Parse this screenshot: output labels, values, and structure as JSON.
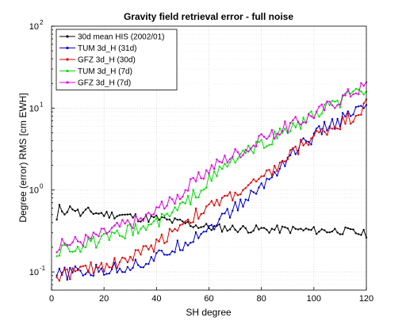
{
  "chart_data": {
    "type": "line",
    "title": "Gravity field retrieval error - full noise",
    "xlabel": "SH degree",
    "ylabel": "Degree (error) RMS [cm EWH]",
    "xlim": [
      0,
      120
    ],
    "ylim": [
      0.06,
      100
    ],
    "yscale": "log",
    "grid": true,
    "legend_position": "top-left",
    "x_ticks": [
      0,
      20,
      40,
      60,
      80,
      100,
      120
    ],
    "y_ticks": [
      {
        "value": 0.1,
        "base": "10",
        "exp": "-1"
      },
      {
        "value": 1,
        "base": "10",
        "exp": "0"
      },
      {
        "value": 10,
        "base": "10",
        "exp": "1"
      },
      {
        "value": 100,
        "base": "10",
        "exp": "2"
      }
    ],
    "series": [
      {
        "name": "30d mean HIS (2002/01)",
        "color": "#000000",
        "marker": "dot",
        "start": 2,
        "anchors": [
          [
            2,
            0.42
          ],
          [
            3,
            0.6
          ],
          [
            5,
            0.55
          ],
          [
            8,
            0.62
          ],
          [
            11,
            0.5
          ],
          [
            14,
            0.55
          ],
          [
            18,
            0.52
          ],
          [
            22,
            0.5
          ],
          [
            26,
            0.5
          ],
          [
            30,
            0.48
          ],
          [
            35,
            0.45
          ],
          [
            40,
            0.45
          ],
          [
            45,
            0.42
          ],
          [
            50,
            0.4
          ],
          [
            55,
            0.37
          ],
          [
            60,
            0.35
          ],
          [
            70,
            0.34
          ],
          [
            80,
            0.33
          ],
          [
            90,
            0.33
          ],
          [
            100,
            0.32
          ],
          [
            110,
            0.32
          ],
          [
            120,
            0.29
          ]
        ]
      },
      {
        "name": "TUM 3d_H (31d)",
        "color": "#0000d0",
        "marker": "dot",
        "start": 2,
        "anchors": [
          [
            2,
            0.09
          ],
          [
            5,
            0.095
          ],
          [
            10,
            0.1
          ],
          [
            15,
            0.1
          ],
          [
            20,
            0.105
          ],
          [
            25,
            0.11
          ],
          [
            30,
            0.12
          ],
          [
            35,
            0.13
          ],
          [
            40,
            0.15
          ],
          [
            45,
            0.18
          ],
          [
            50,
            0.22
          ],
          [
            55,
            0.28
          ],
          [
            60,
            0.35
          ],
          [
            65,
            0.45
          ],
          [
            70,
            0.6
          ],
          [
            75,
            0.8
          ],
          [
            80,
            1.1
          ],
          [
            85,
            1.6
          ],
          [
            90,
            2.5
          ],
          [
            95,
            3.5
          ],
          [
            100,
            4.5
          ],
          [
            105,
            6
          ],
          [
            110,
            7
          ],
          [
            115,
            8.5
          ],
          [
            120,
            11
          ]
        ]
      },
      {
        "name": "GFZ 3d_H (30d)",
        "color": "#e00000",
        "marker": "dot",
        "start": 2,
        "anchors": [
          [
            2,
            0.09
          ],
          [
            5,
            0.095
          ],
          [
            10,
            0.1
          ],
          [
            15,
            0.11
          ],
          [
            20,
            0.12
          ],
          [
            25,
            0.13
          ],
          [
            30,
            0.15
          ],
          [
            35,
            0.18
          ],
          [
            40,
            0.22
          ],
          [
            45,
            0.3
          ],
          [
            50,
            0.4
          ],
          [
            55,
            0.5
          ],
          [
            60,
            0.6
          ],
          [
            65,
            0.75
          ],
          [
            70,
            0.9
          ],
          [
            75,
            1.1
          ],
          [
            80,
            1.3
          ],
          [
            85,
            1.8
          ],
          [
            90,
            2.5
          ],
          [
            95,
            3.5
          ],
          [
            100,
            4.5
          ],
          [
            105,
            5.5
          ],
          [
            110,
            6.5
          ],
          [
            115,
            8
          ],
          [
            120,
            11
          ]
        ]
      },
      {
        "name": "TUM 3d_H (7d)",
        "color": "#00e000",
        "marker": "dot",
        "start": 2,
        "anchors": [
          [
            2,
            0.17
          ],
          [
            5,
            0.2
          ],
          [
            10,
            0.2
          ],
          [
            15,
            0.22
          ],
          [
            20,
            0.25
          ],
          [
            25,
            0.27
          ],
          [
            30,
            0.32
          ],
          [
            35,
            0.35
          ],
          [
            40,
            0.4
          ],
          [
            45,
            0.5
          ],
          [
            50,
            0.65
          ],
          [
            55,
            0.9
          ],
          [
            60,
            1.3
          ],
          [
            65,
            1.8
          ],
          [
            70,
            2.4
          ],
          [
            75,
            3
          ],
          [
            80,
            3.5
          ],
          [
            85,
            4.5
          ],
          [
            90,
            5.5
          ],
          [
            95,
            6.5
          ],
          [
            100,
            8
          ],
          [
            105,
            10
          ],
          [
            110,
            12
          ],
          [
            115,
            15
          ],
          [
            120,
            17
          ]
        ]
      },
      {
        "name": "GFZ 3d_H (7d)",
        "color": "#e000e0",
        "marker": "dot",
        "start": 2,
        "anchors": [
          [
            2,
            0.2
          ],
          [
            5,
            0.22
          ],
          [
            10,
            0.24
          ],
          [
            15,
            0.26
          ],
          [
            20,
            0.3
          ],
          [
            25,
            0.35
          ],
          [
            30,
            0.4
          ],
          [
            35,
            0.45
          ],
          [
            40,
            0.55
          ],
          [
            45,
            0.7
          ],
          [
            50,
            0.95
          ],
          [
            55,
            1.3
          ],
          [
            60,
            1.8
          ],
          [
            65,
            2.3
          ],
          [
            70,
            2.8
          ],
          [
            75,
            3.3
          ],
          [
            80,
            4
          ],
          [
            85,
            5
          ],
          [
            90,
            6
          ],
          [
            95,
            7
          ],
          [
            100,
            8.5
          ],
          [
            105,
            10.5
          ],
          [
            110,
            13
          ],
          [
            115,
            16
          ],
          [
            120,
            19
          ]
        ]
      }
    ]
  }
}
